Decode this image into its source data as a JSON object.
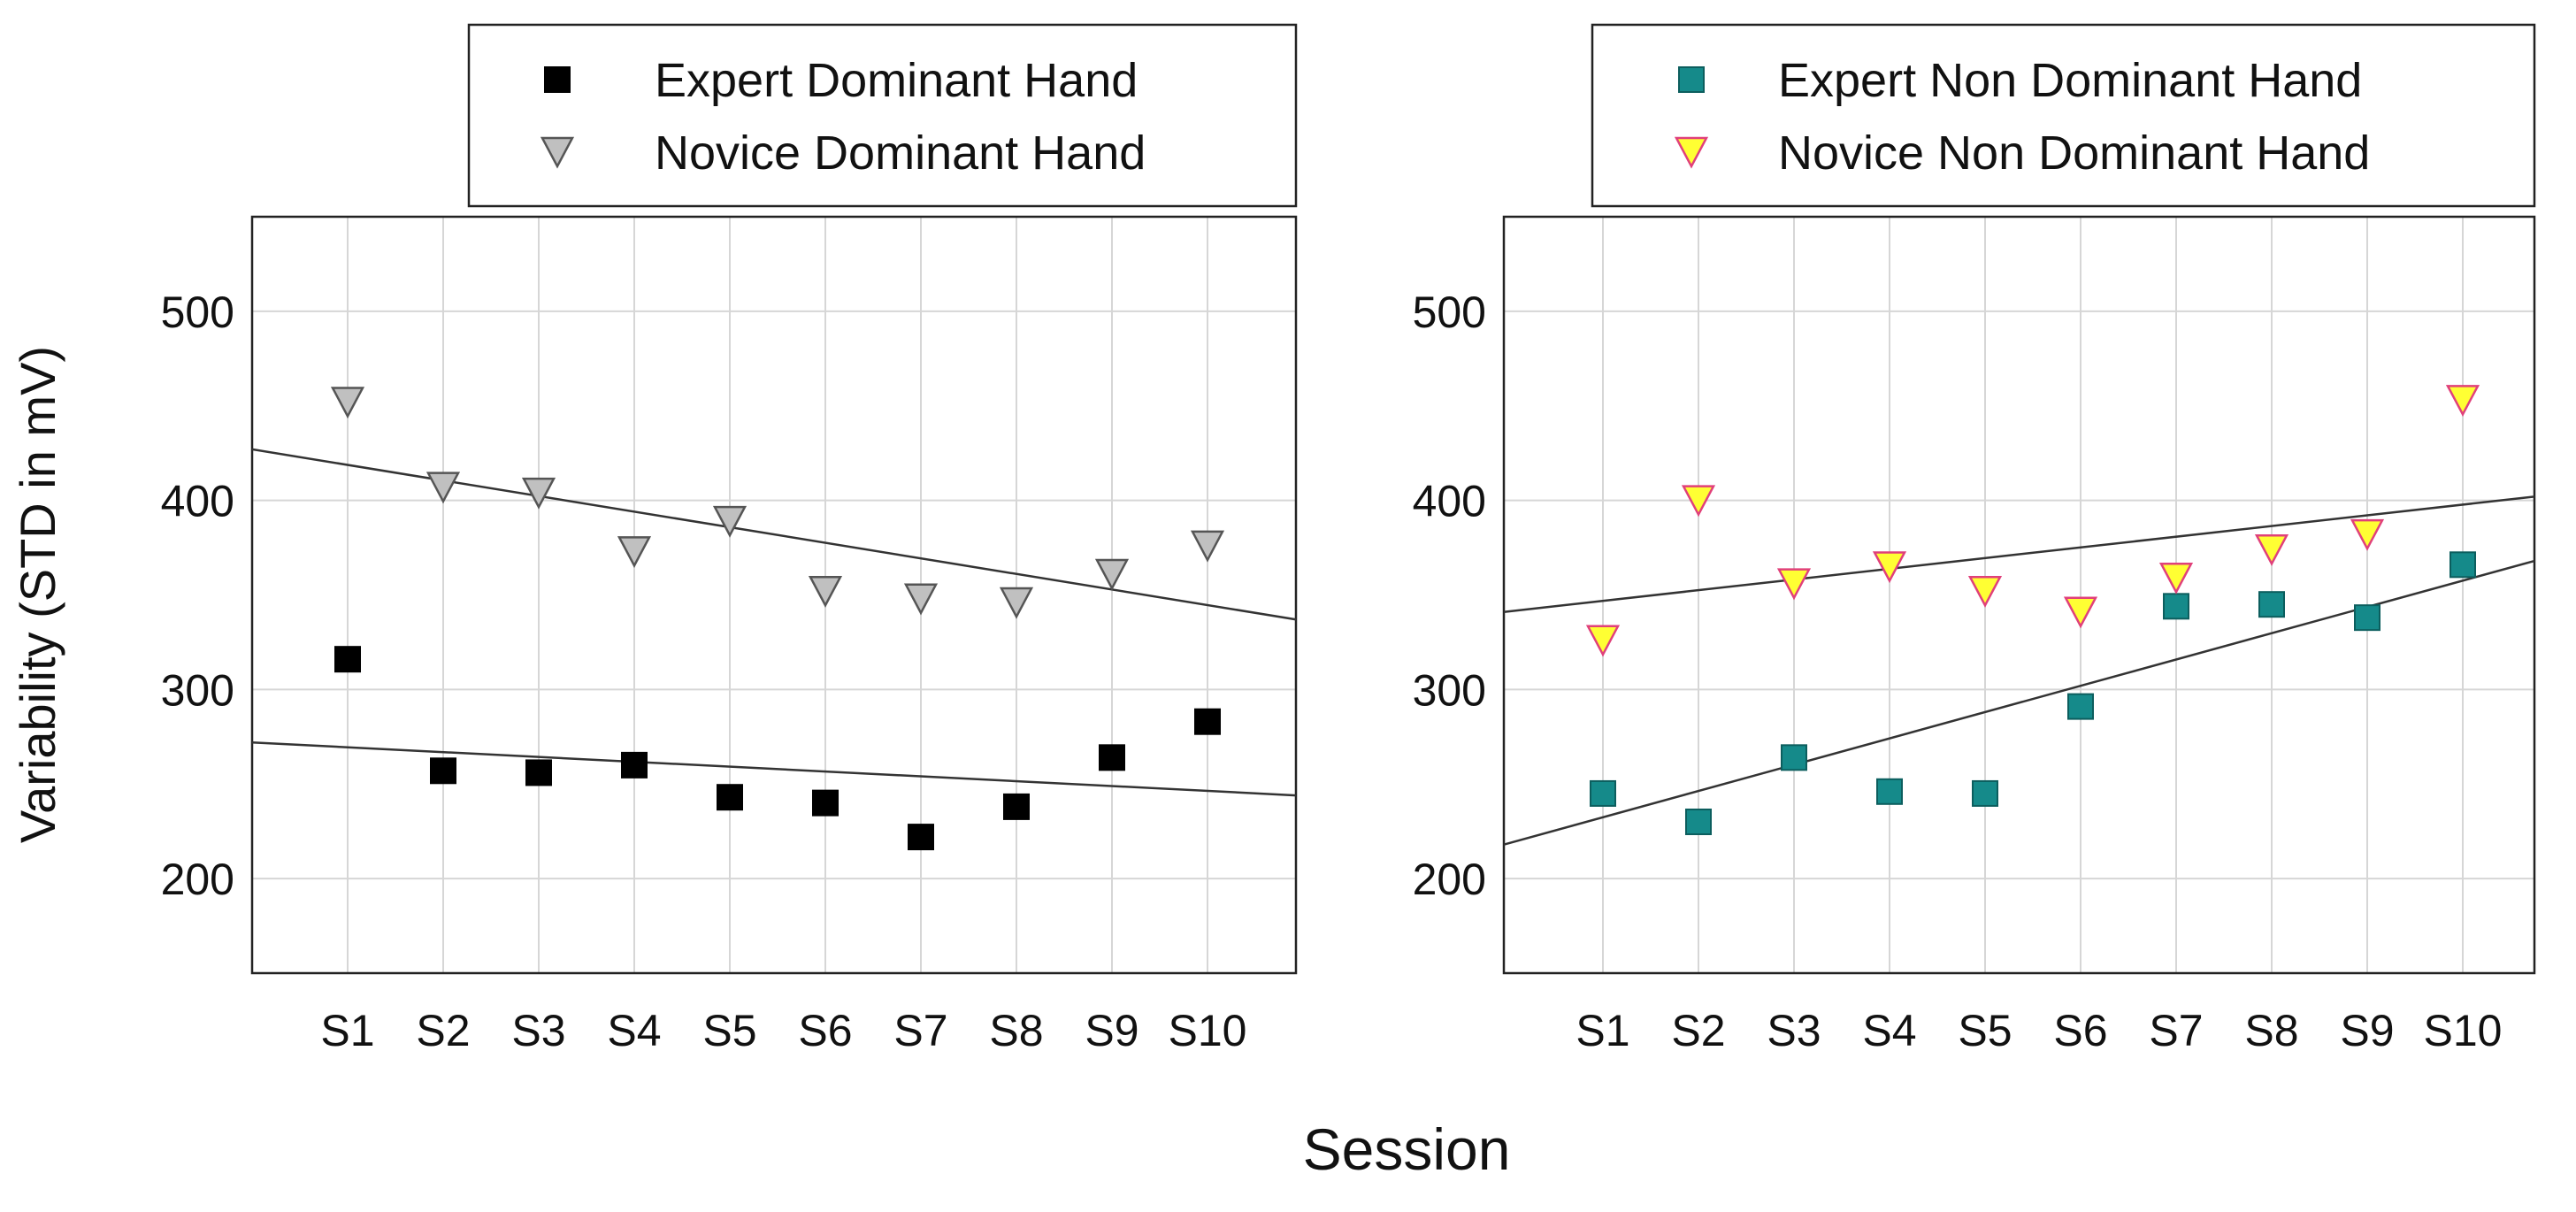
{
  "chart_data": [
    {
      "type": "scatter",
      "title": "",
      "xlabel": "Session",
      "ylabel": "Variability (STD in mV)",
      "categories": [
        "S1",
        "S2",
        "S3",
        "S4",
        "S5",
        "S6",
        "S7",
        "S8",
        "S9",
        "S10"
      ],
      "ylim": [
        150,
        550
      ],
      "yticks": [
        200,
        300,
        400,
        500
      ],
      "grid": true,
      "legend_position": "top",
      "series": [
        {
          "name": "Expert Dominant Hand",
          "marker": "square",
          "color": "#000000",
          "edge": "#000000",
          "values": [
            316,
            257,
            256,
            260,
            243,
            240,
            222,
            238,
            264,
            283
          ],
          "trendline": [
            272,
            244
          ]
        },
        {
          "name": "Novice Dominant Hand",
          "marker": "triangle-down",
          "color": "#c0c0c0",
          "edge": "#555555",
          "values": [
            452,
            407,
            404,
            373,
            389,
            352,
            348,
            346,
            361,
            376
          ],
          "trendline": [
            427,
            337
          ]
        }
      ]
    },
    {
      "type": "scatter",
      "title": "",
      "xlabel": "Session",
      "ylabel": "",
      "categories": [
        "S1",
        "S2",
        "S3",
        "S4",
        "S5",
        "S6",
        "S7",
        "S8",
        "S9",
        "S10"
      ],
      "ylim": [
        150,
        550
      ],
      "yticks": [
        200,
        300,
        400,
        500
      ],
      "grid": true,
      "legend_position": "top",
      "series": [
        {
          "name": "Expert Non Dominant Hand",
          "marker": "square",
          "color": "#158a8a",
          "edge": "#0c5e5e",
          "values": [
            245,
            230,
            264,
            246,
            245,
            291,
            344,
            345,
            338,
            366
          ],
          "trendline": [
            218,
            368
          ]
        },
        {
          "name": "Novice Non Dominant Hand",
          "marker": "triangle-down",
          "color": "#ffff33",
          "edge": "#e0407a",
          "values": [
            326,
            400,
            356,
            365,
            352,
            341,
            359,
            374,
            382,
            453
          ],
          "trendline": [
            341,
            402
          ]
        }
      ]
    }
  ],
  "shared_xlabel": "Session"
}
